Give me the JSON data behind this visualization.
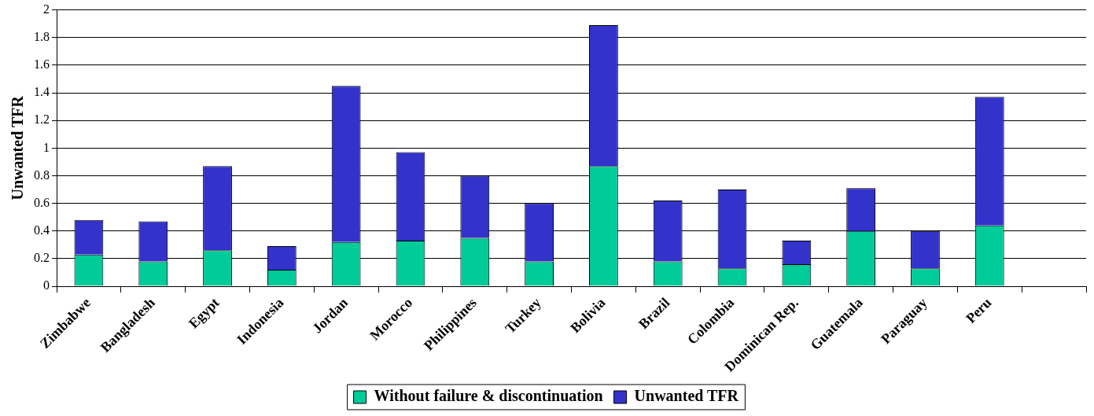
{
  "chart_data": {
    "type": "bar",
    "stacked": true,
    "ylabel": "Unwanted TFR",
    "categories": [
      "Zimbabwe",
      "Bangladesh",
      "Egypt",
      "Indonesia",
      "Jordan",
      "Morocco",
      "Philippines",
      "Turkey",
      "Bolivia",
      "Brazil",
      "Colombia",
      "Dominican Rep.",
      "Guatemala",
      "Paraguay",
      "Peru",
      null
    ],
    "series": [
      {
        "name": "Without failure & discontinuation",
        "color": "#00cc99",
        "values": [
          0.23,
          0.18,
          0.26,
          0.12,
          0.32,
          0.33,
          0.35,
          0.18,
          0.87,
          0.18,
          0.13,
          0.16,
          0.4,
          0.13,
          0.44,
          null
        ]
      },
      {
        "name": "Unwanted TFR",
        "color": "#3333cc",
        "values": [
          0.25,
          0.29,
          0.61,
          0.17,
          1.13,
          0.64,
          0.45,
          0.42,
          1.02,
          0.44,
          0.57,
          0.17,
          0.31,
          0.27,
          0.93,
          null
        ]
      }
    ],
    "ylim": [
      0,
      2
    ],
    "yticks": [
      0,
      0.2,
      0.4,
      0.6,
      0.8,
      1,
      1.2,
      1.4,
      1.6,
      1.8,
      2
    ],
    "grid": "y",
    "legend": "bottom"
  }
}
